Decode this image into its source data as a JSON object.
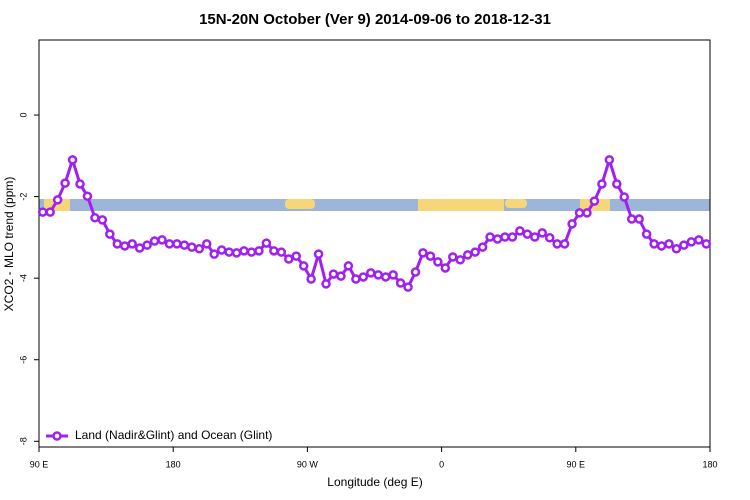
{
  "chart_data": {
    "type": "line",
    "title": "15N-20N October (Ver 9)   2014-09-06 to 2018-12-31",
    "x_label": "Longitude (deg E)",
    "y_label": "XCO2 - MLO trend (ppm)",
    "xlim": [
      90,
      540
    ],
    "xticks": [
      {
        "value": 90,
        "label": "90 E"
      },
      180,
      {
        "value": 270,
        "label": "90 W"
      },
      {
        "value": 360,
        "label": "0"
      },
      {
        "value": 450,
        "label": "90 E"
      },
      {
        "value": 540,
        "label": "180"
      }
    ],
    "ylim": [
      -8.14,
      1.84
    ],
    "yticks": [
      0,
      -2,
      -4,
      -6,
      -8
    ],
    "legend": "bottom-left",
    "series": [
      {
        "name": "Land (Nadir&Glint) and Ocean (Glint)",
        "color": "#a020f0",
        "x": [
          92.5,
          97.5,
          102.5,
          107.5,
          112.5,
          117.5,
          122.5,
          127.5,
          132.5,
          137.5,
          142.5,
          147.5,
          152.5,
          157.5,
          162.5,
          167.5,
          172.5,
          177.5,
          182.5,
          187.5,
          192.5,
          197.5,
          202.5,
          207.5,
          212.5,
          217.5,
          222.5,
          227.5,
          232.5,
          237.5,
          242.5,
          247.5,
          252.5,
          257.5,
          262.5,
          267.5,
          272.5,
          277.5,
          282.5,
          287.5,
          292.5,
          297.5,
          302.5,
          307.5,
          312.5,
          317.5,
          322.5,
          327.5,
          332.5,
          337.5,
          342.5,
          347.5,
          352.5,
          357.5,
          362.5,
          367.5,
          372.5,
          377.5,
          382.5,
          387.5,
          392.5,
          397.5,
          402.5,
          407.5,
          412.5,
          417.5,
          422.5,
          427.5,
          432.5,
          437.5,
          442.5,
          447.5,
          452.5,
          457.5,
          462.5,
          467.5,
          472.5,
          477.5,
          482.5,
          487.5,
          492.5,
          497.5,
          502.5,
          507.5,
          512.5,
          517.5,
          522.5,
          527.5,
          532.5,
          537.5
        ],
        "values": [
          -2.38,
          -2.38,
          -2.08,
          -1.67,
          -1.1,
          -1.69,
          -1.99,
          -2.52,
          -2.57,
          -2.92,
          -3.16,
          -3.21,
          -3.16,
          -3.26,
          -3.19,
          -3.09,
          -3.06,
          -3.16,
          -3.16,
          -3.19,
          -3.24,
          -3.28,
          -3.16,
          -3.41,
          -3.31,
          -3.36,
          -3.38,
          -3.33,
          -3.36,
          -3.33,
          -3.14,
          -3.33,
          -3.36,
          -3.53,
          -3.46,
          -3.7,
          -4.02,
          -3.41,
          -4.14,
          -3.9,
          -3.95,
          -3.7,
          -4.02,
          -3.97,
          -3.87,
          -3.92,
          -3.97,
          -3.92,
          -4.12,
          -4.22,
          -3.85,
          -3.38,
          -3.46,
          -3.6,
          -3.75,
          -3.48,
          -3.55,
          -3.43,
          -3.36,
          -3.24,
          -2.99,
          -3.04,
          -2.99,
          -2.99,
          -2.84,
          -2.92,
          -2.99,
          -2.89,
          -3.01,
          -3.16,
          -3.16,
          -2.67,
          -2.4,
          -2.4,
          -2.11,
          -1.69,
          -1.1,
          -1.69,
          -2.01,
          -2.55,
          -2.55,
          -2.92,
          -3.16,
          -3.21,
          -3.16,
          -3.28,
          -3.19,
          -3.11,
          -3.06,
          -3.16
        ]
      }
    ]
  }
}
